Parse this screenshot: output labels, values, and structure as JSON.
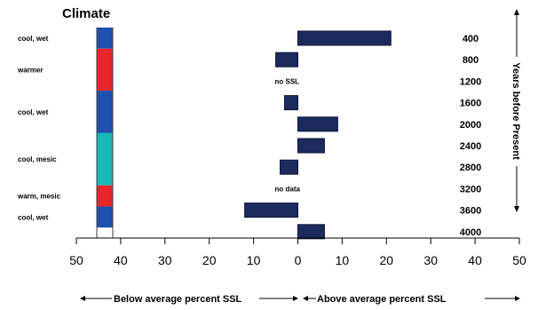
{
  "chart_data": {
    "type": "bar",
    "title": "Climate",
    "y_axis_label": "Years before Present",
    "x_axis_left_label": "Below average percent SSL",
    "x_axis_right_label": "Above average percent SSL",
    "x_ticks": [
      "50",
      "40",
      "30",
      "20",
      "10",
      "0",
      "10",
      "20",
      "30",
      "40",
      "50"
    ],
    "x_range": [
      -50,
      50
    ],
    "years": [
      400,
      800,
      1200,
      1600,
      2000,
      2400,
      2800,
      3200,
      3600,
      4000
    ],
    "year_labels": [
      "400",
      "800",
      "1200",
      "1600",
      "2000",
      "2400",
      "2800",
      "3200",
      "3600",
      "4000"
    ],
    "values": [
      21,
      -5,
      null,
      -3,
      9,
      6,
      -4,
      null,
      -12,
      6
    ],
    "annotations": [
      {
        "year": 1200,
        "text": "no SSL"
      },
      {
        "year": 3200,
        "text": "no data"
      }
    ],
    "climate_periods": [
      {
        "label": "cool, wet",
        "from": 400,
        "to": 800,
        "color": "#1f4fb0"
      },
      {
        "label": "warmer",
        "from": 800,
        "to": 1600,
        "color": "#e8262a"
      },
      {
        "label": "cool, wet",
        "from": 1600,
        "to": 2400,
        "color": "#1f4fb0"
      },
      {
        "label": "cool, mesic",
        "from": 2400,
        "to": 3400,
        "color": "#17b8b6"
      },
      {
        "label": "warm, mesic",
        "from": 3400,
        "to": 3800,
        "color": "#e8262a"
      },
      {
        "label": "cool, wet",
        "from": 3800,
        "to": 4200,
        "color": "#1f4fb0"
      }
    ],
    "bar_color": "#1c2a5e"
  }
}
